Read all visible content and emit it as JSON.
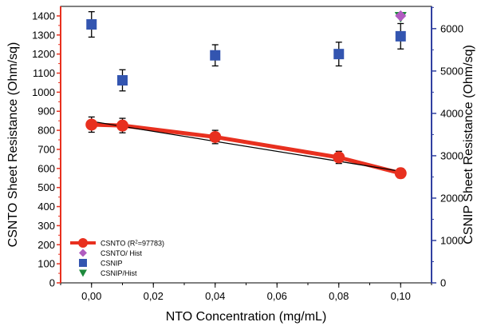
{
  "chart_data": {
    "type": "scatter",
    "xlabel": "NTO Concentration (mg/mL)",
    "ylabel_left": "CSNTO Sheet Resistance (Ohm/sq)",
    "ylabel_right": "CSNIP Sheet Resistance (Ohm/sq)",
    "xlim": [
      -0.01,
      0.11
    ],
    "ylim_left": [
      0,
      1450
    ],
    "ylim_right": [
      0,
      6525
    ],
    "x_ticks": [
      0.0,
      0.02,
      0.04,
      0.06,
      0.08,
      0.1
    ],
    "x_tick_labels": [
      "0,00",
      "0,02",
      "0,04",
      "0,06",
      "0,08",
      "0,10"
    ],
    "y_left_ticks": [
      0,
      100,
      200,
      300,
      400,
      500,
      600,
      700,
      800,
      900,
      1000,
      1100,
      1200,
      1300,
      1400
    ],
    "y_left_tick_labels": [
      "0",
      "100",
      "200",
      "300",
      "400",
      "500",
      "600",
      "700",
      "800",
      "900",
      "1000",
      "1100",
      "1200",
      "1300",
      "1400"
    ],
    "y_right_ticks": [
      0,
      1000,
      2000,
      3000,
      4000,
      5000,
      6000
    ],
    "y_right_tick_labels": [
      "0",
      "1000",
      "2000",
      "3000",
      "4000",
      "5000",
      "6000"
    ],
    "legend_position": "bottom-left",
    "series": [
      {
        "key": "csnto",
        "name_prefix": "CSNTO (R",
        "name_sup": "2",
        "name_suffix": "=97783)",
        "axis": "left",
        "marker": "circle",
        "color": "#e8301f",
        "line": true,
        "x": [
          0.0,
          0.01,
          0.04,
          0.08,
          0.1
        ],
        "y": [
          830,
          825,
          765,
          658,
          575
        ],
        "err": [
          40,
          38,
          35,
          32,
          25
        ]
      },
      {
        "key": "csnto_hist",
        "name": "CSNTO/ Hist",
        "axis": "left",
        "marker": "diamond",
        "color": "#b05cc0",
        "x": [
          0.1
        ],
        "y": [
          1400
        ],
        "err": [
          0
        ]
      },
      {
        "key": "csnip",
        "name": "CSNIP",
        "axis": "right",
        "marker": "square",
        "color": "#3355b0",
        "x": [
          0.0,
          0.01,
          0.04,
          0.08,
          0.1
        ],
        "y": [
          6100,
          4780,
          5370,
          5400,
          5820
        ],
        "err": [
          300,
          250,
          250,
          280,
          300
        ]
      },
      {
        "key": "csnip_hist",
        "name": "CSNIP/Hist",
        "axis": "right",
        "marker": "triangle-down",
        "color": "#1e8a3c",
        "x": [
          0.1
        ],
        "y": [
          6280
        ],
        "err": [
          0
        ]
      }
    ],
    "fit_line": {
      "color": "#000000",
      "x": [
        0.0,
        0.1
      ],
      "y": [
        847,
        585
      ]
    },
    "left_axis_color": "#e8301f",
    "right_axis_color": "#3040a0"
  }
}
